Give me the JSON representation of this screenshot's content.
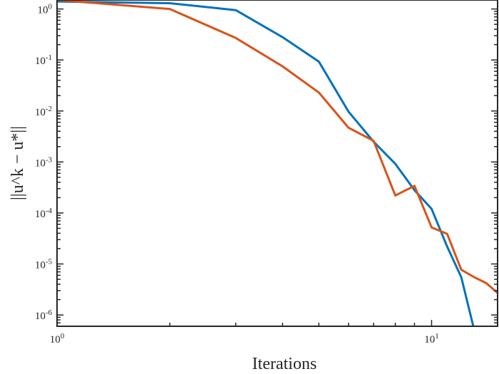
{
  "chart_data": {
    "type": "line",
    "xlabel": "Iterations",
    "ylabel": "||u^k − u*||",
    "xscale": "log",
    "yscale": "log",
    "xlim": [
      1,
      15
    ],
    "ylim": [
      6e-07,
      1.5
    ],
    "grid": false,
    "x_ticks": [
      {
        "value": 1,
        "base": "10",
        "exp": "0"
      },
      {
        "value": 10,
        "base": "10",
        "exp": "1"
      }
    ],
    "y_ticks": [
      {
        "value": 1,
        "base": "10",
        "exp": "0"
      },
      {
        "value": 0.1,
        "base": "10",
        "exp": "-1"
      },
      {
        "value": 0.01,
        "base": "10",
        "exp": "-2"
      },
      {
        "value": 0.001,
        "base": "10",
        "exp": "-3"
      },
      {
        "value": 0.0001,
        "base": "10",
        "exp": "-4"
      },
      {
        "value": 1e-05,
        "base": "10",
        "exp": "-5"
      },
      {
        "value": 1e-06,
        "base": "10",
        "exp": "-6"
      }
    ],
    "series": [
      {
        "color": "#0072BD",
        "x": [
          1,
          2,
          3,
          4,
          5,
          6,
          7,
          8,
          9,
          10,
          11,
          12,
          13
        ],
        "y": [
          1.4,
          1.3,
          0.95,
          0.28,
          0.093,
          0.0097,
          0.0025,
          0.00092,
          0.00028,
          0.00012,
          2.2e-05,
          5.5e-06,
          5e-07
        ]
      },
      {
        "color": "#D95319",
        "x": [
          1,
          2,
          3,
          4,
          5,
          6,
          7,
          8,
          9,
          10,
          11,
          12,
          13,
          14,
          15
        ],
        "y": [
          1.5,
          1.0,
          0.27,
          0.075,
          0.023,
          0.0047,
          0.0026,
          0.00022,
          0.00034,
          5.2e-05,
          3.9e-05,
          7.7e-06,
          5.5e-06,
          4.2e-06,
          2.7e-06
        ]
      }
    ]
  }
}
